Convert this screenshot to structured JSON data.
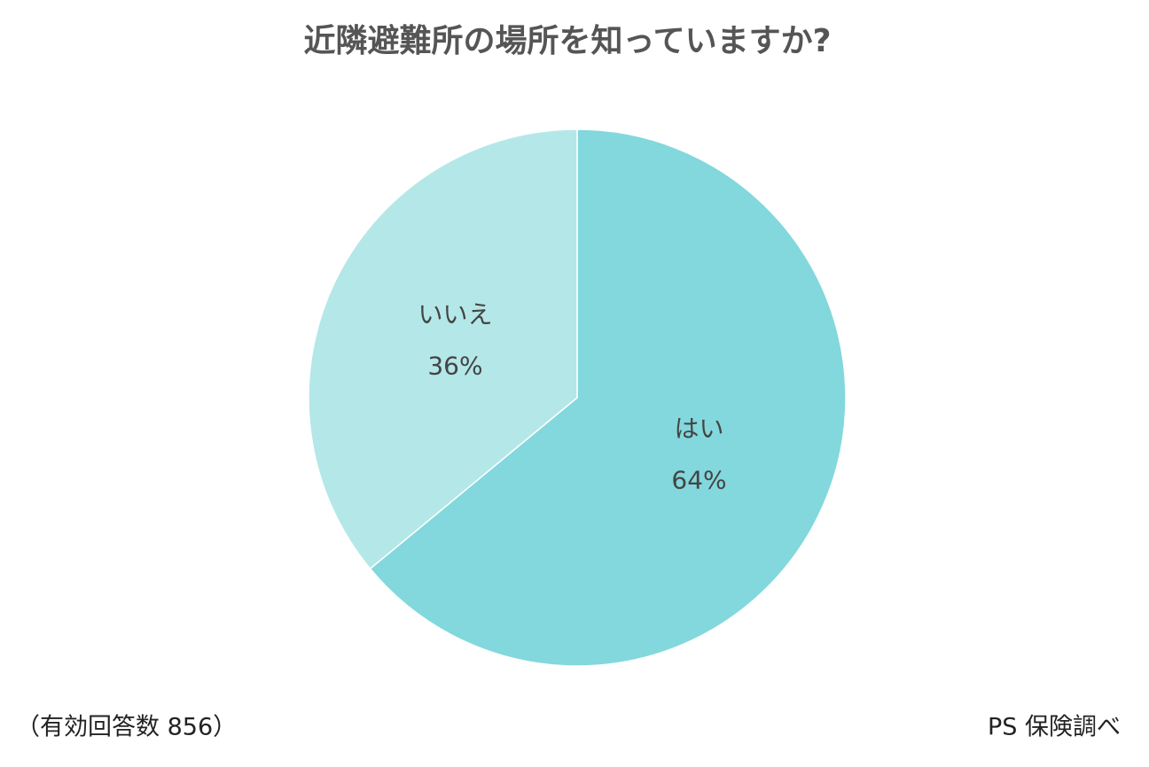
{
  "chart_data": {
    "type": "pie",
    "title": "近隣避難所の場所を知っていますか?",
    "categories": [
      "はい",
      "いいえ"
    ],
    "values": [
      64,
      36
    ],
    "value_labels": [
      "64%",
      "36%"
    ],
    "colors": [
      "#82d8dc",
      "#b4e7e8"
    ],
    "note": "（有効回答数 856）",
    "source": "PS 保険調べ"
  }
}
